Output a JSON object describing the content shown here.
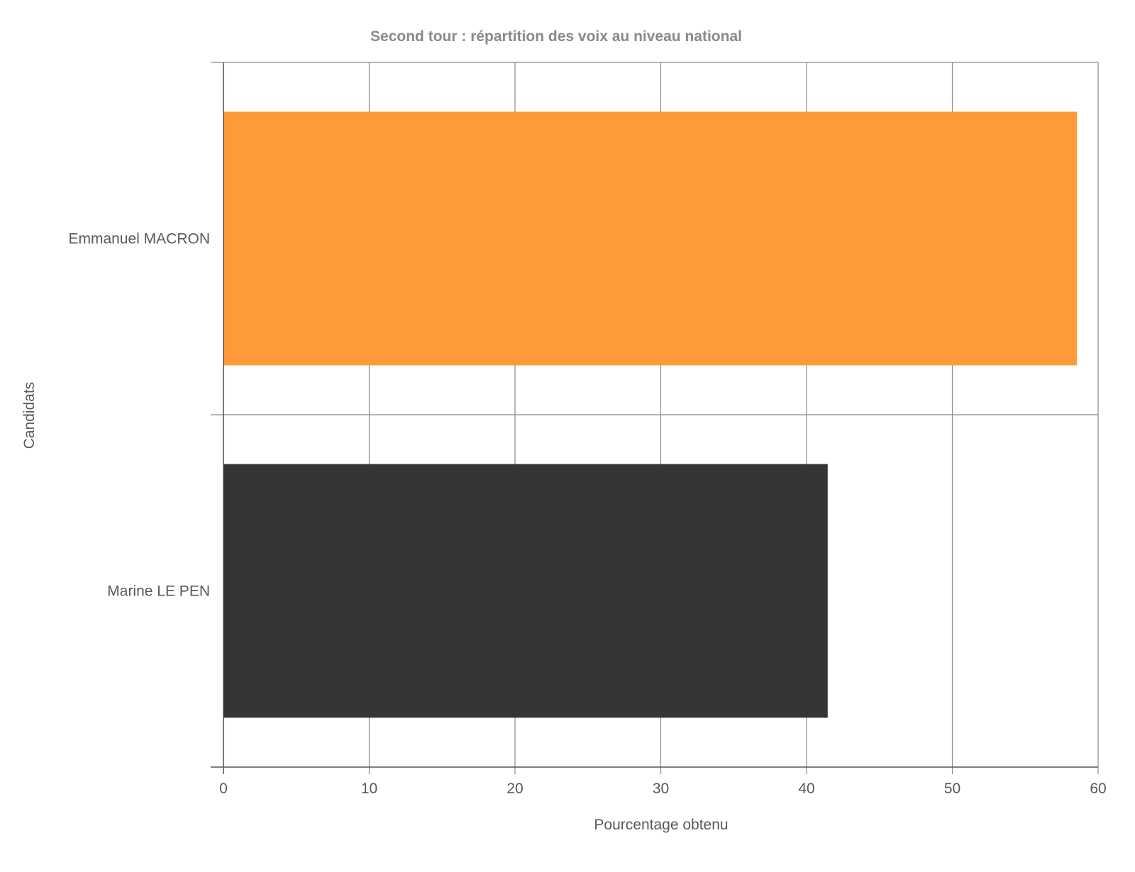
{
  "chart_data": {
    "type": "bar",
    "orientation": "horizontal",
    "title": "Second tour : répartition des voix au niveau national",
    "xlabel": "Pourcentage obtenu",
    "ylabel": "Candidats",
    "categories": [
      "Emmanuel MACRON",
      "Marine LE PEN"
    ],
    "values": [
      58.55,
      41.45
    ],
    "colors": [
      "#ff9a38",
      "#353535"
    ],
    "xlim": [
      0,
      60
    ],
    "xticks": [
      "0",
      "10",
      "20",
      "30",
      "40",
      "50",
      "60"
    ],
    "grid": true,
    "legend": "none"
  }
}
